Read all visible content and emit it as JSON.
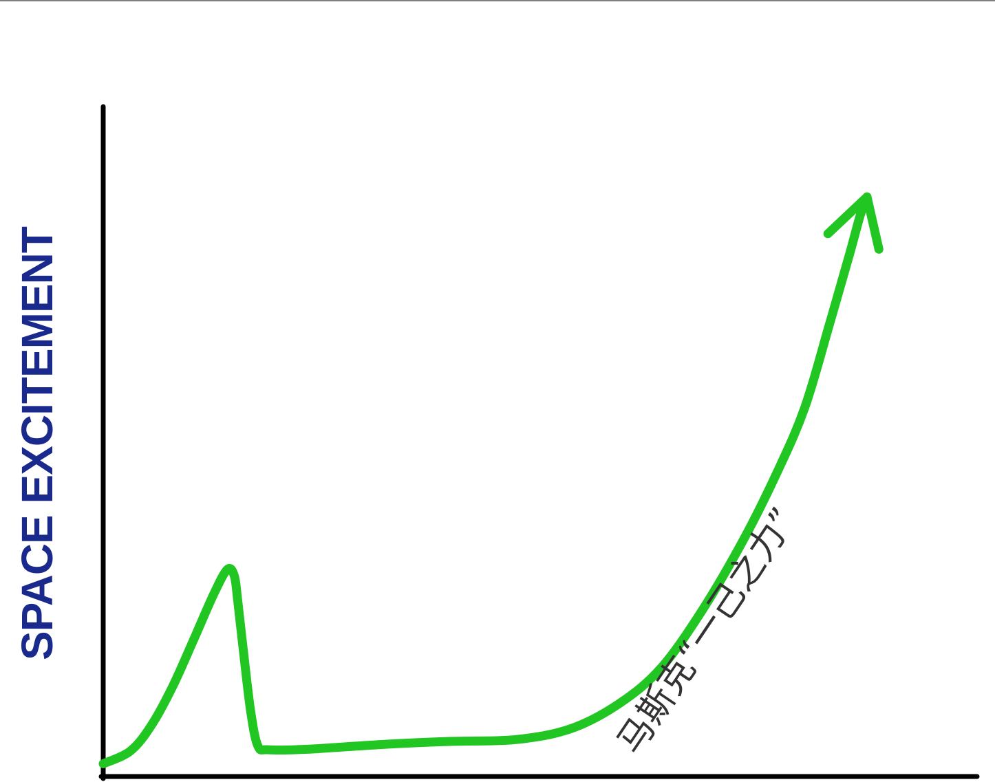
{
  "chart_data": {
    "type": "line",
    "title": "",
    "xlabel": "",
    "ylabel": "SPACE EXCITEMENT",
    "xlim": [
      0,
      100
    ],
    "ylim": [
      0,
      100
    ],
    "grid": false,
    "series": [
      {
        "line_color": "#22c622",
        "points": [
          [
            0.0,
            2.0
          ],
          [
            3.1,
            4.0
          ],
          [
            5.5,
            8.0
          ],
          [
            7.9,
            14.0
          ],
          [
            10.2,
            21.0
          ],
          [
            12.6,
            28.5
          ],
          [
            14.2,
            32.5
          ],
          [
            15.0,
            31.5
          ],
          [
            15.4,
            27.5
          ],
          [
            16.1,
            19.0
          ],
          [
            16.9,
            10.0
          ],
          [
            17.7,
            4.8
          ],
          [
            18.9,
            4.2
          ],
          [
            23.6,
            4.3
          ],
          [
            31.5,
            5.0
          ],
          [
            39.4,
            5.5
          ],
          [
            47.2,
            5.8
          ],
          [
            53.5,
            7.5
          ],
          [
            59.1,
            11.5
          ],
          [
            63.8,
            17.0
          ],
          [
            68.5,
            26.0
          ],
          [
            73.2,
            37.0
          ],
          [
            77.2,
            48.0
          ],
          [
            80.3,
            58.0
          ],
          [
            83.1,
            71.0
          ],
          [
            85.4,
            82.0
          ],
          [
            86.6,
            88.0
          ],
          [
            87.4,
            91.0
          ]
        ]
      }
    ],
    "annotations": [
      {
        "text": "马斯克“一己之力”",
        "color": "#333333",
        "angle": -56
      }
    ],
    "axis_color": "#000000",
    "ylabel_color": "#1a2a8c"
  }
}
